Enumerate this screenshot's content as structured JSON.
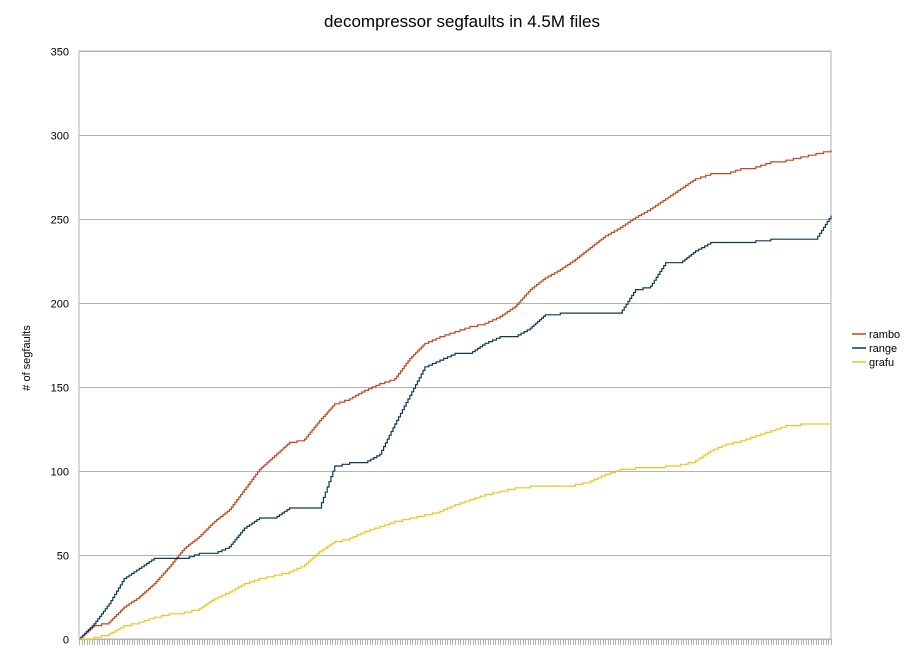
{
  "chart_data": {
    "type": "line",
    "title": "decompressor segfaults in 4.5M files",
    "xlabel": "",
    "ylabel": "# of segfaults",
    "ylim": [
      0,
      350
    ],
    "yticks": [
      0,
      50,
      100,
      150,
      200,
      250,
      300,
      350
    ],
    "grid": "horizontal",
    "legend_position": "right",
    "x": [
      0,
      2,
      4,
      6,
      8,
      10,
      12,
      14,
      16,
      18,
      20,
      22,
      24,
      26,
      28,
      30,
      32,
      34,
      36,
      38,
      40,
      42,
      44,
      46,
      48,
      50,
      52,
      54,
      56,
      58,
      60,
      62,
      64,
      66,
      68,
      70,
      72,
      74,
      76,
      78,
      80,
      82,
      84,
      86,
      88,
      90,
      92,
      94,
      96,
      98,
      100
    ],
    "series": [
      {
        "name": "rambo",
        "color": "#c0461b",
        "values": [
          0,
          8,
          10,
          19,
          25,
          33,
          43,
          54,
          61,
          70,
          77,
          89,
          101,
          109,
          117,
          119,
          130,
          140,
          143,
          148,
          152,
          155,
          167,
          176,
          180,
          183,
          186,
          188,
          192,
          198,
          208,
          215,
          220,
          226,
          233,
          240,
          245,
          251,
          256,
          262,
          268,
          274,
          277,
          277,
          280,
          281,
          284,
          285,
          287,
          289,
          291
        ]
      },
      {
        "name": "range",
        "color": "#0d3a52",
        "values": [
          0,
          9,
          21,
          36,
          42,
          48,
          48,
          48,
          51,
          51,
          55,
          66,
          72,
          72,
          78,
          78,
          78,
          103,
          105,
          105,
          110,
          128,
          145,
          162,
          166,
          170,
          170,
          176,
          180,
          180,
          185,
          193,
          194,
          194,
          194,
          194,
          194,
          208,
          210,
          224,
          224,
          231,
          236,
          236,
          236,
          237,
          238,
          238,
          238,
          238,
          252
        ]
      },
      {
        "name": "grafu",
        "color": "#ecc61b",
        "values": [
          0,
          1,
          3,
          8,
          10,
          13,
          15,
          16,
          18,
          24,
          28,
          33,
          36,
          38,
          40,
          44,
          52,
          58,
          60,
          64,
          67,
          70,
          72,
          74,
          76,
          80,
          83,
          86,
          88,
          90,
          91,
          91,
          91,
          92,
          94,
          98,
          101,
          102,
          102,
          103,
          104,
          106,
          112,
          116,
          118,
          121,
          124,
          127,
          128,
          128,
          128
        ]
      }
    ]
  }
}
